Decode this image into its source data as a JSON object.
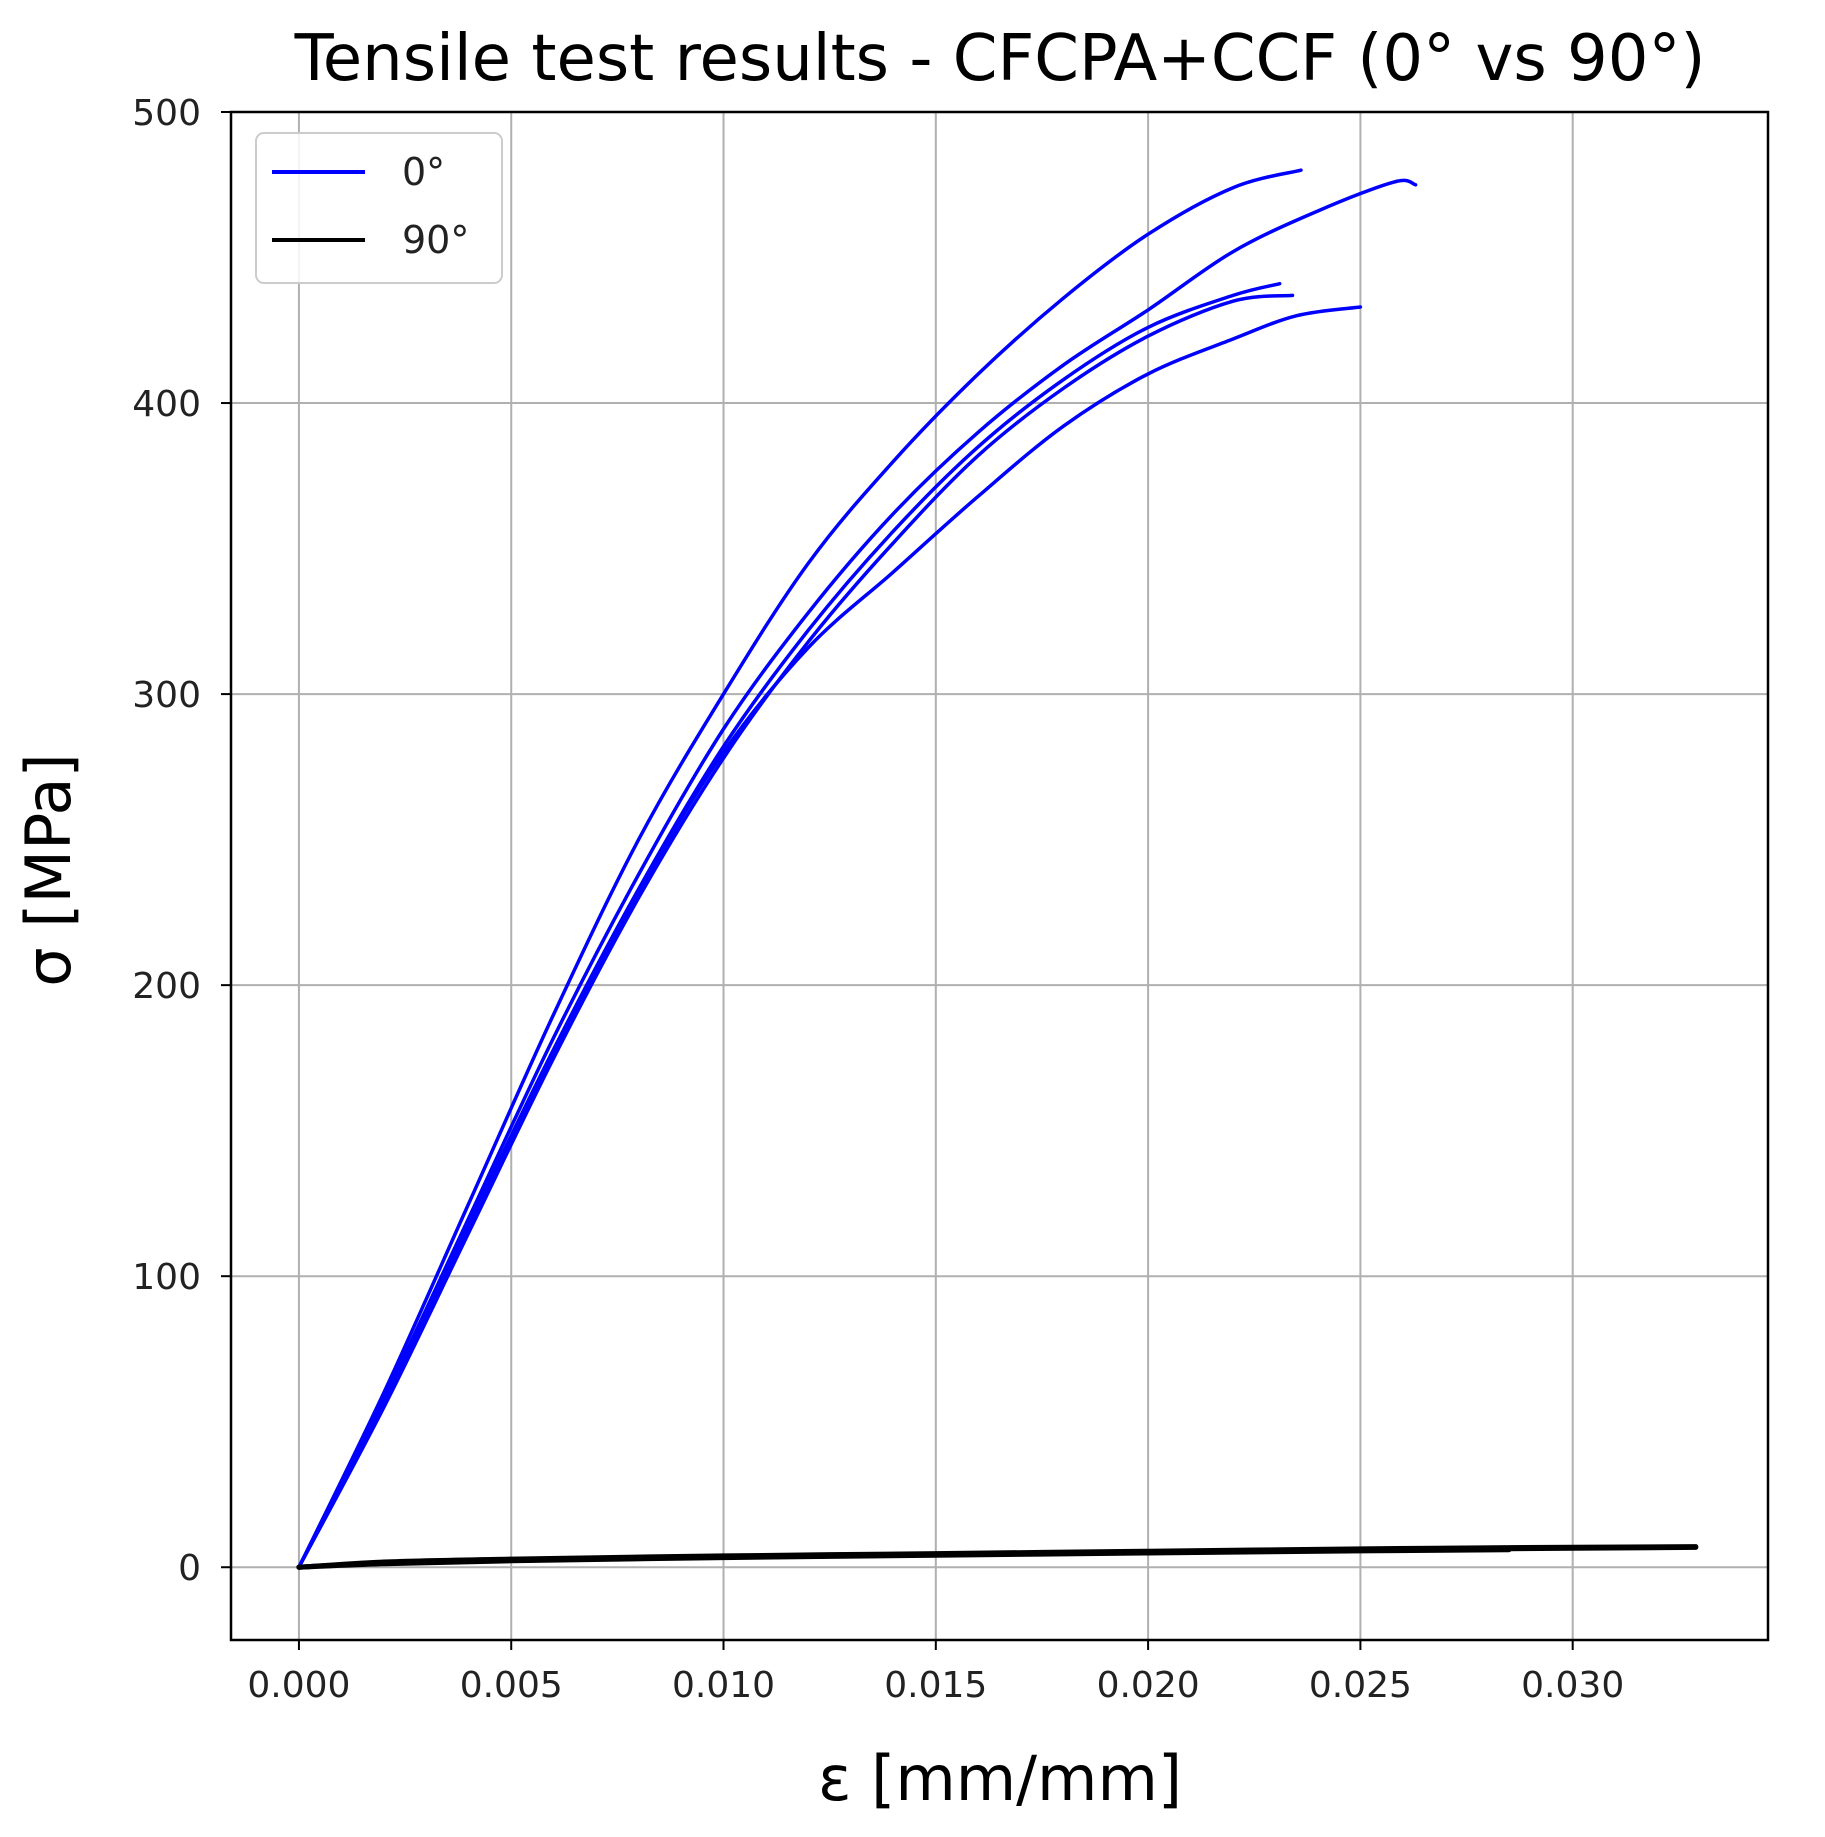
{
  "chart_data": {
    "type": "line",
    "title": "Tensile test results - CFCPA+CCF (0° vs 90°)",
    "xlabel": "ε [mm/mm]",
    "ylabel": "σ [MPa]",
    "xlim": [
      -0.0016,
      0.0346
    ],
    "ylim": [
      -25,
      500
    ],
    "xticks": [
      0.0,
      0.005,
      0.01,
      0.015,
      0.02,
      0.025,
      0.03
    ],
    "xtick_labels": [
      "0.000",
      "0.005",
      "0.010",
      "0.015",
      "0.020",
      "0.025",
      "0.030"
    ],
    "yticks": [
      0,
      100,
      200,
      300,
      400,
      500
    ],
    "ytick_labels": [
      "0",
      "100",
      "200",
      "300",
      "400",
      "500"
    ],
    "grid": true,
    "legend_position": "top-left",
    "legend": [
      {
        "label": "0°",
        "color": "#0000ff"
      },
      {
        "label": "90°",
        "color": "#000000"
      }
    ],
    "series": [
      {
        "group": 0,
        "color": "#0000ff",
        "points": [
          [
            0,
            0
          ],
          [
            0.002,
            60
          ],
          [
            0.004,
            125
          ],
          [
            0.006,
            190
          ],
          [
            0.008,
            250
          ],
          [
            0.01,
            300
          ],
          [
            0.012,
            345
          ],
          [
            0.014,
            380
          ],
          [
            0.016,
            410
          ],
          [
            0.018,
            436
          ],
          [
            0.02,
            458
          ],
          [
            0.022,
            474
          ],
          [
            0.0236,
            480
          ]
        ]
      },
      {
        "group": 0,
        "color": "#0000ff",
        "points": [
          [
            0,
            0
          ],
          [
            0.002,
            58
          ],
          [
            0.004,
            120
          ],
          [
            0.006,
            182
          ],
          [
            0.008,
            238
          ],
          [
            0.01,
            288
          ],
          [
            0.012,
            328
          ],
          [
            0.014,
            362
          ],
          [
            0.016,
            390
          ],
          [
            0.018,
            413
          ],
          [
            0.02,
            432
          ],
          [
            0.022,
            452
          ],
          [
            0.024,
            466
          ],
          [
            0.0258,
            476
          ],
          [
            0.0263,
            475
          ]
        ]
      },
      {
        "group": 0,
        "color": "#0000ff",
        "points": [
          [
            0,
            0
          ],
          [
            0.002,
            57
          ],
          [
            0.004,
            118
          ],
          [
            0.006,
            178
          ],
          [
            0.008,
            233
          ],
          [
            0.01,
            282
          ],
          [
            0.012,
            322
          ],
          [
            0.014,
            356
          ],
          [
            0.016,
            385
          ],
          [
            0.018,
            408
          ],
          [
            0.02,
            426
          ],
          [
            0.022,
            437
          ],
          [
            0.0231,
            441
          ]
        ]
      },
      {
        "group": 0,
        "color": "#0000ff",
        "points": [
          [
            0,
            0
          ],
          [
            0.002,
            55
          ],
          [
            0.004,
            115
          ],
          [
            0.006,
            175
          ],
          [
            0.008,
            230
          ],
          [
            0.01,
            278
          ],
          [
            0.012,
            318
          ],
          [
            0.014,
            352
          ],
          [
            0.016,
            382
          ],
          [
            0.018,
            405
          ],
          [
            0.02,
            423
          ],
          [
            0.022,
            435
          ],
          [
            0.0234,
            437
          ]
        ]
      },
      {
        "group": 0,
        "color": "#0000ff",
        "points": [
          [
            0,
            0
          ],
          [
            0.002,
            56
          ],
          [
            0.004,
            117
          ],
          [
            0.006,
            177
          ],
          [
            0.008,
            232
          ],
          [
            0.01,
            280
          ],
          [
            0.012,
            316
          ],
          [
            0.014,
            342
          ],
          [
            0.016,
            368
          ],
          [
            0.018,
            392
          ],
          [
            0.02,
            410
          ],
          [
            0.022,
            422
          ],
          [
            0.0235,
            430
          ],
          [
            0.025,
            433
          ]
        ]
      },
      {
        "group": 1,
        "color": "#000000",
        "points": [
          [
            0,
            0
          ],
          [
            0.002,
            1.5
          ],
          [
            0.005,
            2.5
          ],
          [
            0.01,
            3.6
          ],
          [
            0.015,
            4.4
          ],
          [
            0.02,
            5.2
          ],
          [
            0.025,
            6.0
          ],
          [
            0.03,
            6.5
          ],
          [
            0.0329,
            6.8
          ]
        ]
      },
      {
        "group": 1,
        "color": "#000000",
        "points": [
          [
            0,
            0
          ],
          [
            0.002,
            1.2
          ],
          [
            0.005,
            2.2
          ],
          [
            0.01,
            3.3
          ],
          [
            0.015,
            4.1
          ],
          [
            0.02,
            4.9
          ],
          [
            0.025,
            5.6
          ],
          [
            0.0285,
            6.0
          ]
        ]
      },
      {
        "group": 1,
        "color": "#000000",
        "points": [
          [
            0,
            0
          ],
          [
            0.002,
            1.8
          ],
          [
            0.005,
            2.8
          ],
          [
            0.01,
            3.9
          ],
          [
            0.015,
            4.7
          ],
          [
            0.02,
            5.5
          ],
          [
            0.025,
            6.3
          ],
          [
            0.03,
            6.9
          ],
          [
            0.0329,
            7.1
          ]
        ]
      }
    ]
  }
}
